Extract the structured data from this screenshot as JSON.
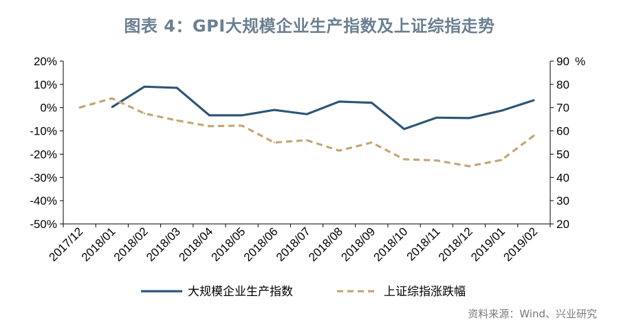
{
  "title": "图表 4：GPI大规模企业生产指数及上证综指走势",
  "source": "资料来源：Wind、兴业研究",
  "chart_data": {
    "type": "line",
    "categories": [
      "2017/12",
      "2018/01",
      "2018/02",
      "2018/03",
      "2018/04",
      "2018/05",
      "2018/06",
      "2018/07",
      "2018/08",
      "2018/09",
      "2018/10",
      "2018/11",
      "2018/12",
      "2019/01",
      "2019/02"
    ],
    "y_left": {
      "label": "",
      "ylim": [
        -50,
        20
      ],
      "ticks": [
        "-50%",
        "-40%",
        "-30%",
        "-20%",
        "-10%",
        "0%",
        "10%",
        "20%"
      ],
      "tick_values": [
        -50,
        -40,
        -30,
        -20,
        -10,
        0,
        10,
        20
      ]
    },
    "y_right": {
      "label": "%",
      "ylim": [
        20,
        90
      ],
      "ticks": [
        "20",
        "30",
        "40",
        "50",
        "60",
        "70",
        "80",
        "90"
      ],
      "tick_values": [
        20,
        30,
        40,
        50,
        60,
        70,
        80,
        90
      ]
    },
    "grid": false,
    "legend_position": "bottom",
    "series": [
      {
        "name": "大规模企业生产指数",
        "axis": "left",
        "style": "solid",
        "color": "#2e5576",
        "x": [
          "2018/01",
          "2018/02",
          "2018/03",
          "2018/04",
          "2018/05",
          "2018/06",
          "2018/07",
          "2018/08",
          "2018/09",
          "2018/10",
          "2018/11",
          "2018/12",
          "2019/01",
          "2019/02"
        ],
        "values": [
          0.2,
          9.0,
          8.5,
          -3.3,
          -3.3,
          -1.0,
          -2.8,
          2.6,
          2.1,
          -9.2,
          -4.3,
          -4.5,
          -1.3,
          3.2
        ]
      },
      {
        "name": "上证综指涨跌幅",
        "axis": "right",
        "style": "dashed",
        "color": "#c4a675",
        "x": [
          "2017/12",
          "2018/01",
          "2018/02",
          "2018/03",
          "2018/04",
          "2018/05",
          "2018/06",
          "2018/07",
          "2018/08",
          "2018/09",
          "2018/10",
          "2018/11",
          "2018/12",
          "2019/01",
          "2019/02"
        ],
        "values": [
          70,
          74,
          67.5,
          64.5,
          62,
          62.3,
          55,
          56,
          51.5,
          55,
          47.8,
          47.3,
          44.8,
          47.5,
          58
        ]
      }
    ]
  }
}
